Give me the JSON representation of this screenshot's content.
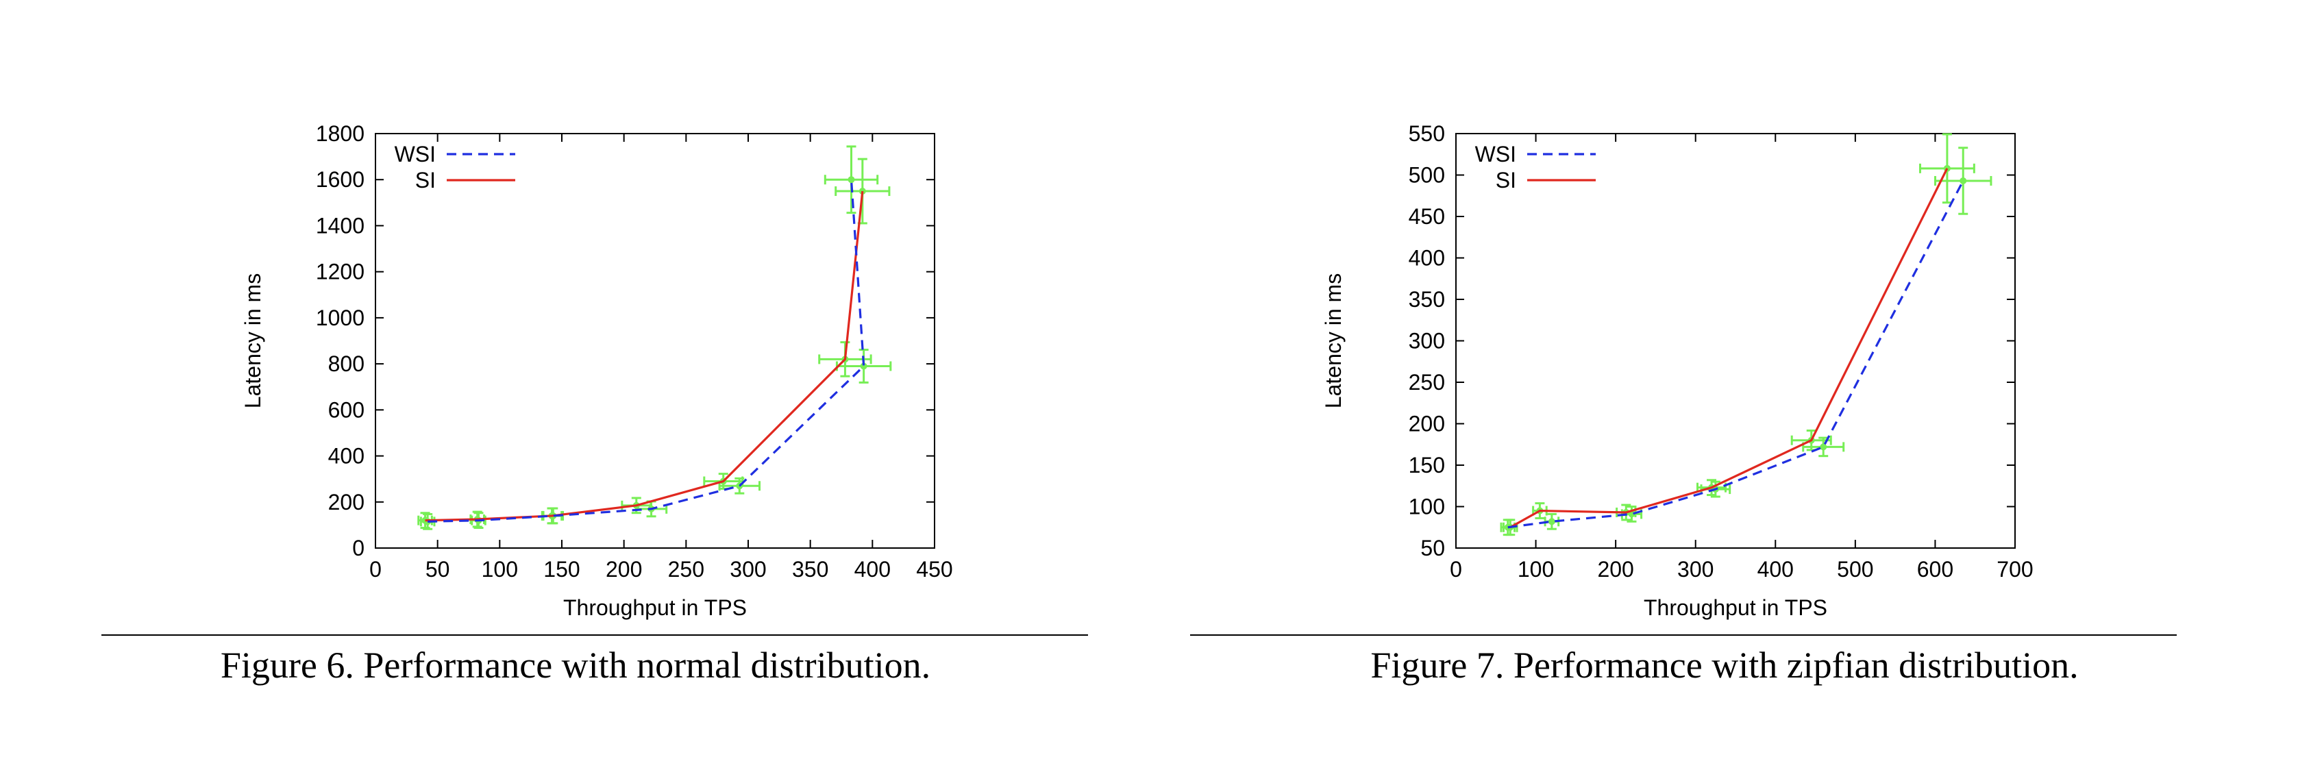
{
  "figures": [
    {
      "caption": "Figure 6.  Performance with normal distribution.",
      "chart_data": {
        "type": "line",
        "title": "",
        "xlabel": "Throughput in TPS",
        "ylabel": "Latency in ms",
        "xlim": [
          0,
          450
        ],
        "ylim": [
          0,
          1800
        ],
        "xticks": [
          0,
          50,
          100,
          150,
          200,
          250,
          300,
          350,
          400,
          450
        ],
        "yticks": [
          0,
          200,
          400,
          600,
          800,
          1000,
          1200,
          1400,
          1600,
          1800
        ],
        "grid": false,
        "legend": "top-left",
        "series": [
          {
            "name": "WSI",
            "color": "#1f2fe0",
            "style": "dashed",
            "x": [
              42,
              83,
              143,
              222,
              293,
              393,
              383
            ],
            "y": [
              115,
              120,
              140,
              170,
              270,
              790,
              1600
            ]
          },
          {
            "name": "SI",
            "color": "#e0281f",
            "style": "solid",
            "x": [
              40,
              82,
              142,
              210,
              280,
              378,
              392
            ],
            "y": [
              120,
              125,
              140,
              185,
              290,
              820,
              1550
            ]
          }
        ],
        "error_color": "#77ee55"
      }
    },
    {
      "caption": "Figure 7.  Performance with zipfian distribution.",
      "chart_data": {
        "type": "line",
        "title": "",
        "xlabel": "Throughput in TPS",
        "ylabel": "Latency in ms",
        "xlim": [
          0,
          700
        ],
        "ylim": [
          50,
          550
        ],
        "xticks": [
          0,
          100,
          200,
          300,
          400,
          500,
          600,
          700
        ],
        "yticks": [
          50,
          100,
          150,
          200,
          250,
          300,
          350,
          400,
          450,
          500,
          550
        ],
        "grid": false,
        "legend": "top-left",
        "series": [
          {
            "name": "WSI",
            "color": "#1f2fe0",
            "style": "dashed",
            "x": [
              65,
              120,
              220,
              325,
              460,
              635
            ],
            "y": [
              75,
              82,
              91,
              121,
              172,
              493
            ]
          },
          {
            "name": "SI",
            "color": "#e0281f",
            "style": "solid",
            "x": [
              68,
              105,
              213,
              320,
              445,
              615
            ],
            "y": [
              75,
              95,
              93,
              123,
              180,
              508
            ]
          }
        ],
        "error_color": "#77ee55"
      }
    }
  ]
}
